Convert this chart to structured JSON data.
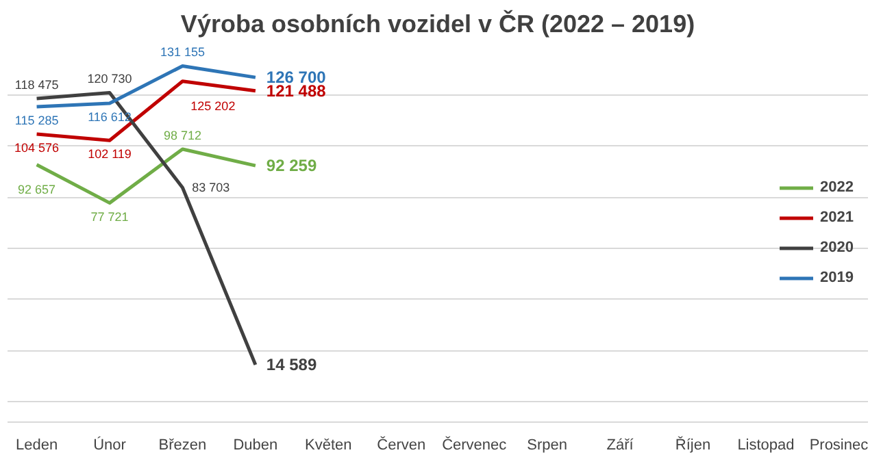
{
  "chart_data": {
    "type": "line",
    "title": "Výroba osobních vozidel v ČR (2022 – 2019)",
    "categories": [
      "Leden",
      "Únor",
      "Březen",
      "Duben",
      "Květen",
      "Červen",
      "Červenec",
      "Srpen",
      "Září",
      "Říjen",
      "Listopad",
      "Prosinec"
    ],
    "series": [
      {
        "name": "2022",
        "color": "#70ad47",
        "values": [
          92657,
          77721,
          98712,
          92259,
          null,
          null,
          null,
          null,
          null,
          null,
          null,
          null
        ]
      },
      {
        "name": "2021",
        "color": "#c00000",
        "values": [
          104576,
          102119,
          125202,
          121488,
          null,
          null,
          null,
          null,
          null,
          null,
          null,
          null
        ]
      },
      {
        "name": "2020",
        "color": "#404040",
        "values": [
          118475,
          120730,
          83703,
          14589,
          null,
          null,
          null,
          null,
          null,
          null,
          null,
          null
        ]
      },
      {
        "name": "2019",
        "color": "#2e75b6",
        "values": [
          115285,
          116612,
          131155,
          126700,
          null,
          null,
          null,
          null,
          null,
          null,
          null,
          null
        ]
      }
    ],
    "tick_labels": "x",
    "grid": "y",
    "legend": "right",
    "data_labels": true,
    "marker": "none",
    "line_style": "solid"
  }
}
